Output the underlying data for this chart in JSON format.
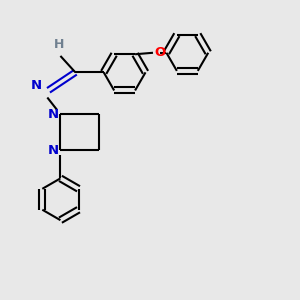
{
  "background_color": "#e8e8e8",
  "bond_color": "#000000",
  "N_color": "#0000cd",
  "O_color": "#ff0000",
  "H_color": "#708090",
  "line_width": 1.5,
  "font_size_atom": 9.5,
  "fig_size": [
    3.0,
    3.0
  ],
  "dpi": 100,
  "xlim": [
    0,
    10
  ],
  "ylim": [
    0,
    10
  ]
}
